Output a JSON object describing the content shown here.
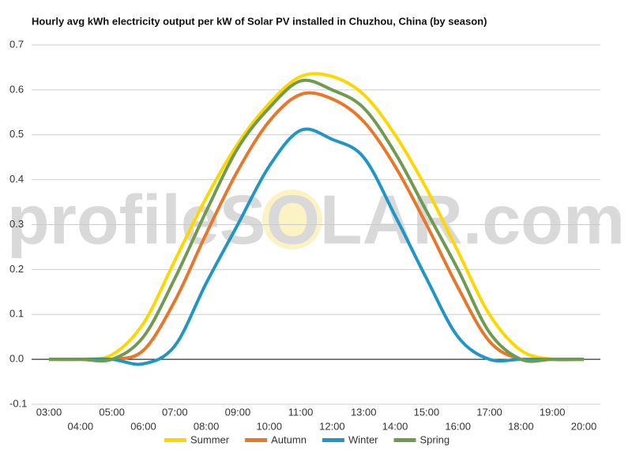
{
  "chart_data": {
    "type": "line",
    "title": "Hourly avg kWh electricity output per kW of Solar PV installed in Chuzhou, China (by season)",
    "watermark": "profileSOLAR.com",
    "categories": [
      "03:00",
      "04:00",
      "05:00",
      "06:00",
      "07:00",
      "08:00",
      "09:00",
      "10:00",
      "11:00",
      "12:00",
      "13:00",
      "14:00",
      "15:00",
      "16:00",
      "17:00",
      "18:00",
      "19:00",
      "20:00"
    ],
    "series": [
      {
        "name": "Summer",
        "color": "#ffd700",
        "values": [
          0,
          0,
          0.01,
          0.08,
          0.22,
          0.36,
          0.48,
          0.57,
          0.63,
          0.63,
          0.59,
          0.5,
          0.38,
          0.24,
          0.1,
          0.02,
          0,
          0
        ]
      },
      {
        "name": "Autumn",
        "color": "#e8772a",
        "values": [
          0,
          0,
          0,
          0.02,
          0.13,
          0.28,
          0.42,
          0.53,
          0.59,
          0.58,
          0.53,
          0.43,
          0.3,
          0.16,
          0.04,
          0,
          0,
          0
        ]
      },
      {
        "name": "Winter",
        "color": "#2196c4",
        "values": [
          0,
          0,
          0,
          -0.01,
          0.03,
          0.17,
          0.3,
          0.43,
          0.51,
          0.49,
          0.45,
          0.32,
          0.18,
          0.05,
          0,
          0,
          0,
          0
        ]
      },
      {
        "name": "Spring",
        "color": "#6e9b50",
        "values": [
          0,
          0,
          0,
          0.05,
          0.18,
          0.33,
          0.47,
          0.56,
          0.62,
          0.6,
          0.56,
          0.46,
          0.33,
          0.2,
          0.06,
          0,
          0,
          0
        ]
      }
    ],
    "ylim": [
      -0.1,
      0.7
    ],
    "yticks": [
      -0.1,
      {
        "value": 0,
        "label": "0.0"
      },
      0.1,
      0.2,
      0.3,
      0.4,
      0.5,
      0.6,
      0.7
    ],
    "grid": true,
    "legend": "bottom"
  }
}
